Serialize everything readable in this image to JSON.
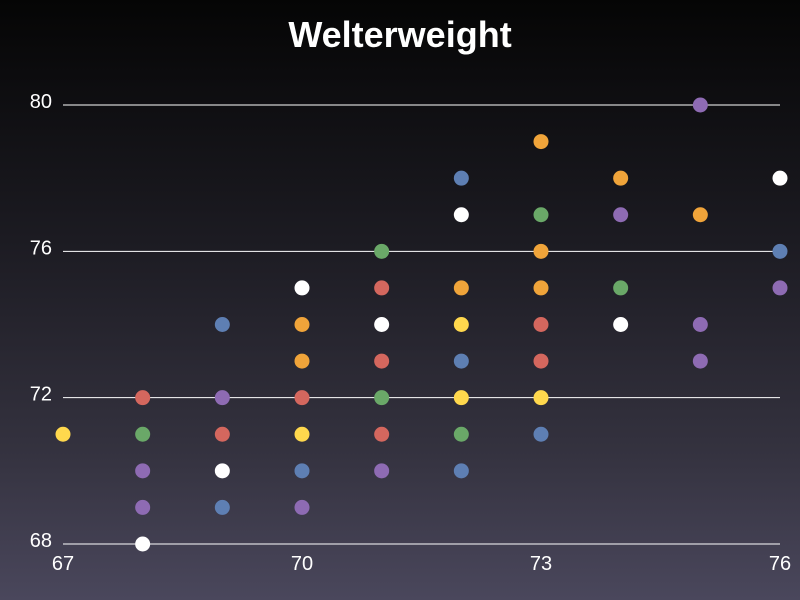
{
  "chart_data": {
    "type": "scatter",
    "title": "Welterweight",
    "xlabel": "",
    "ylabel": "",
    "xlim": [
      67,
      76
    ],
    "ylim": [
      68,
      80
    ],
    "xticks": [
      67,
      70,
      73,
      76
    ],
    "yticks": [
      68,
      72,
      76,
      80
    ],
    "grid": "horizontal",
    "legend": "none",
    "colors": {
      "yellow": "#ffd84d",
      "green": "#6aa868",
      "red": "#d4675e",
      "purple": "#8e6bb3",
      "blue": "#5e7fb3",
      "white": "#ffffff",
      "orange": "#f0a43a"
    },
    "points": [
      {
        "x": 67,
        "y": 71,
        "color": "yellow"
      },
      {
        "x": 68,
        "y": 72,
        "color": "red"
      },
      {
        "x": 68,
        "y": 71,
        "color": "green"
      },
      {
        "x": 68,
        "y": 70,
        "color": "purple"
      },
      {
        "x": 68,
        "y": 69,
        "color": "purple"
      },
      {
        "x": 68,
        "y": 68,
        "color": "white"
      },
      {
        "x": 69,
        "y": 74,
        "color": "blue"
      },
      {
        "x": 69,
        "y": 72,
        "color": "purple"
      },
      {
        "x": 69,
        "y": 71,
        "color": "red"
      },
      {
        "x": 69,
        "y": 70,
        "color": "white"
      },
      {
        "x": 69,
        "y": 69,
        "color": "blue"
      },
      {
        "x": 70,
        "y": 75,
        "color": "white"
      },
      {
        "x": 70,
        "y": 74,
        "color": "orange"
      },
      {
        "x": 70,
        "y": 73,
        "color": "orange"
      },
      {
        "x": 70,
        "y": 72,
        "color": "red"
      },
      {
        "x": 70,
        "y": 71,
        "color": "yellow"
      },
      {
        "x": 70,
        "y": 70,
        "color": "blue"
      },
      {
        "x": 70,
        "y": 69,
        "color": "purple"
      },
      {
        "x": 71,
        "y": 76,
        "color": "green"
      },
      {
        "x": 71,
        "y": 75,
        "color": "red"
      },
      {
        "x": 71,
        "y": 74,
        "color": "white"
      },
      {
        "x": 71,
        "y": 73,
        "color": "red"
      },
      {
        "x": 71,
        "y": 72,
        "color": "green"
      },
      {
        "x": 71,
        "y": 71,
        "color": "red"
      },
      {
        "x": 71,
        "y": 70,
        "color": "purple"
      },
      {
        "x": 72,
        "y": 78,
        "color": "blue"
      },
      {
        "x": 72,
        "y": 77,
        "color": "white"
      },
      {
        "x": 72,
        "y": 75,
        "color": "orange"
      },
      {
        "x": 72,
        "y": 74,
        "color": "yellow"
      },
      {
        "x": 72,
        "y": 73,
        "color": "blue"
      },
      {
        "x": 72,
        "y": 72,
        "color": "yellow"
      },
      {
        "x": 72,
        "y": 71,
        "color": "green"
      },
      {
        "x": 72,
        "y": 70,
        "color": "blue"
      },
      {
        "x": 73,
        "y": 79,
        "color": "orange"
      },
      {
        "x": 73,
        "y": 77,
        "color": "green"
      },
      {
        "x": 73,
        "y": 76,
        "color": "orange"
      },
      {
        "x": 73,
        "y": 75,
        "color": "orange"
      },
      {
        "x": 73,
        "y": 74,
        "color": "red"
      },
      {
        "x": 73,
        "y": 73,
        "color": "red"
      },
      {
        "x": 73,
        "y": 72,
        "color": "yellow"
      },
      {
        "x": 73,
        "y": 71,
        "color": "blue"
      },
      {
        "x": 74,
        "y": 78,
        "color": "orange"
      },
      {
        "x": 74,
        "y": 77,
        "color": "purple"
      },
      {
        "x": 74,
        "y": 75,
        "color": "green"
      },
      {
        "x": 74,
        "y": 74,
        "color": "white"
      },
      {
        "x": 75,
        "y": 80,
        "color": "purple"
      },
      {
        "x": 75,
        "y": 77,
        "color": "orange"
      },
      {
        "x": 75,
        "y": 74,
        "color": "purple"
      },
      {
        "x": 75,
        "y": 73,
        "color": "purple"
      },
      {
        "x": 76,
        "y": 78,
        "color": "white"
      },
      {
        "x": 76,
        "y": 76,
        "color": "blue"
      },
      {
        "x": 76,
        "y": 75,
        "color": "purple"
      }
    ]
  }
}
